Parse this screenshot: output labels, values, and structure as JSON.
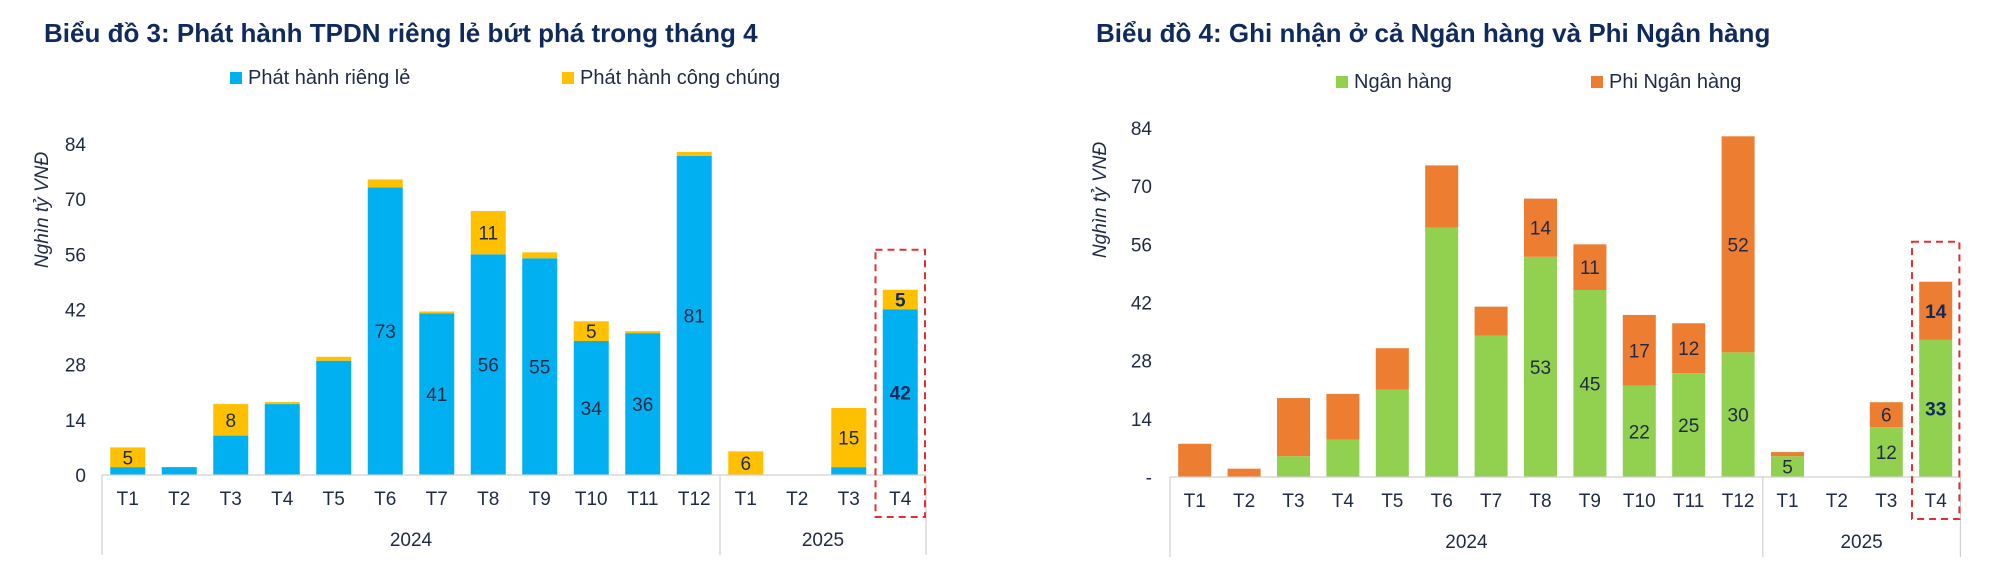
{
  "chart_data": [
    {
      "type": "bar",
      "stacked": true,
      "title": "Biểu đồ 3: Phát hành TPDN riêng lẻ bứt phá trong tháng 4",
      "ylabel": "Nghìn tỷ VNĐ",
      "ylim": [
        0,
        84
      ],
      "yticks": [
        "0",
        "14",
        "28",
        "42",
        "56",
        "70",
        "84"
      ],
      "categories": [
        "T1",
        "T2",
        "T3",
        "T4",
        "T5",
        "T6",
        "T7",
        "T8",
        "T9",
        "T10",
        "T11",
        "T12",
        "T1",
        "T2",
        "T3",
        "T4"
      ],
      "groups": [
        {
          "label": "2024",
          "count": 12
        },
        {
          "label": "2025",
          "count": 4
        }
      ],
      "legend_position": "top",
      "highlight_index": 15,
      "series": [
        {
          "name": "Phát hành riêng lẻ",
          "color": "#00b0f0",
          "values": [
            2,
            2,
            10,
            18,
            29,
            73,
            41,
            56,
            55,
            34,
            36,
            81,
            0,
            0,
            2,
            42
          ],
          "labels": [
            "",
            "",
            "",
            "",
            "",
            "73",
            "41",
            "56",
            "55",
            "34",
            "36",
            "81",
            "",
            "",
            "",
            "42"
          ]
        },
        {
          "name": "Phát hành công chúng",
          "color": "#ffc000",
          "values": [
            5,
            0,
            8,
            0.5,
            1,
            2,
            0.5,
            11,
            1.5,
            5,
            0.5,
            1,
            6,
            0,
            15,
            5
          ],
          "labels": [
            "5",
            "",
            "8",
            "",
            "",
            "",
            "",
            "11",
            "",
            "5",
            "",
            "",
            "6",
            "",
            "15",
            "5"
          ]
        }
      ]
    },
    {
      "type": "bar",
      "stacked": true,
      "title": "Biểu đồ 4: Ghi nhận ở cả Ngân hàng và Phi Ngân hàng",
      "ylabel": "Nghìn tỷ VNĐ",
      "ylim": [
        0,
        84
      ],
      "yticks": [
        "-",
        "14",
        "28",
        "42",
        "56",
        "70",
        "84"
      ],
      "categories": [
        "T1",
        "T2",
        "T3",
        "T4",
        "T5",
        "T6",
        "T7",
        "T8",
        "T9",
        "T10",
        "T11",
        "T12",
        "T1",
        "T2",
        "T3",
        "T4"
      ],
      "groups": [
        {
          "label": "2024",
          "count": 12
        },
        {
          "label": "2025",
          "count": 4
        }
      ],
      "legend_position": "top",
      "highlight_index": 15,
      "series": [
        {
          "name": "Ngân hàng",
          "color": "#92d050",
          "values": [
            0,
            0,
            5,
            9,
            21,
            60,
            34,
            53,
            45,
            22,
            25,
            30,
            5,
            0,
            12,
            33
          ],
          "labels": [
            "",
            "",
            "",
            "",
            "",
            "",
            "",
            "53",
            "45",
            "22",
            "25",
            "30",
            "5",
            "",
            "12",
            "33"
          ]
        },
        {
          "name": "Phi Ngân hàng",
          "color": "#ed7d31",
          "values": [
            8,
            2,
            14,
            11,
            10,
            15,
            7,
            14,
            11,
            17,
            12,
            52,
            1,
            0,
            6,
            14
          ],
          "labels": [
            "",
            "",
            "",
            "",
            "",
            "",
            "",
            "14",
            "11",
            "17",
            "12",
            "52",
            "",
            "",
            "6",
            "14"
          ]
        }
      ]
    }
  ]
}
